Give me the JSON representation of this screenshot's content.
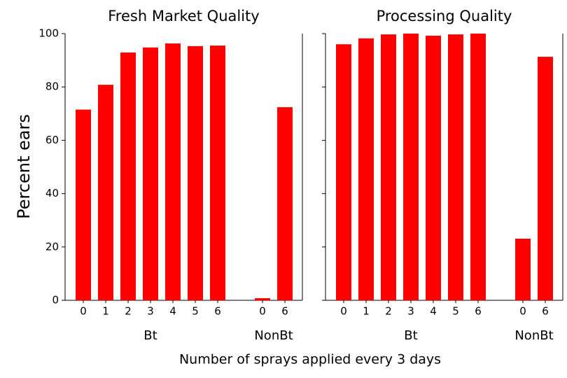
{
  "ylabel": "Percent ears",
  "xlabel": "Number of sprays applied every 3 days",
  "chart_data": [
    {
      "type": "bar",
      "title": "Fresh Market Quality",
      "color": "#ff0000",
      "ylim": [
        0,
        100
      ],
      "yticks": [
        0,
        20,
        40,
        60,
        80,
        100
      ],
      "groups": [
        {
          "name": "Bt",
          "categories": [
            "0",
            "1",
            "2",
            "3",
            "4",
            "5",
            "6"
          ],
          "values": [
            71.5,
            80.8,
            92.9,
            94.8,
            96.3,
            95.3,
            95.5
          ]
        },
        {
          "name": "NonBt",
          "categories": [
            "0",
            "6"
          ],
          "values": [
            0.8,
            72.4
          ]
        }
      ]
    },
    {
      "type": "bar",
      "title": "Processing Quality",
      "color": "#ff0000",
      "ylim": [
        0,
        100
      ],
      "yticks": [
        0,
        20,
        40,
        60,
        80,
        100
      ],
      "groups": [
        {
          "name": "Bt",
          "categories": [
            "0",
            "1",
            "2",
            "3",
            "4",
            "5",
            "6"
          ],
          "values": [
            96,
            98.2,
            99.7,
            100,
            99.2,
            99.7,
            100
          ]
        },
        {
          "name": "NonBt",
          "categories": [
            "0",
            "6"
          ],
          "values": [
            23.1,
            91.3
          ]
        }
      ]
    }
  ]
}
